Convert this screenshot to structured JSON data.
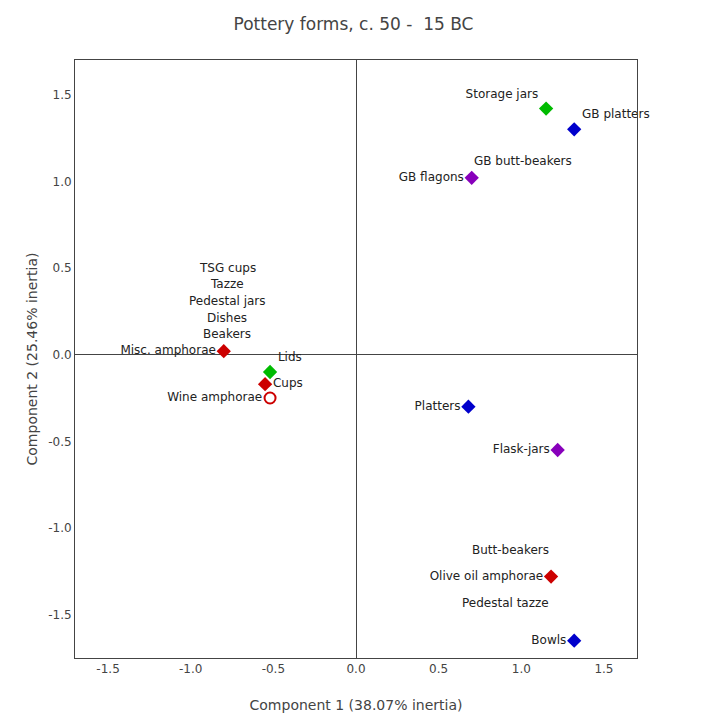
{
  "chart_data": {
    "type": "scatter",
    "title": "Pottery forms, c. 50 -  15 BC",
    "xlabel": "Component 1 (38.07% inertia)",
    "ylabel": "Component 2 (25.46% inertia)",
    "xlim": [
      -1.7,
      1.7
    ],
    "ylim": [
      -1.75,
      1.7
    ],
    "xticks": [
      -1.5,
      {
        "value": -1,
        "label": "-1.0"
      },
      -0.5,
      {
        "value": 0,
        "label": "0.0"
      },
      0.5,
      {
        "value": 1,
        "label": "1.0"
      },
      1.5
    ],
    "yticks": [
      -1.5,
      {
        "value": -1,
        "label": "-1.0"
      },
      -0.5,
      {
        "value": 0,
        "label": "0.0"
      },
      0.5,
      {
        "value": 1,
        "label": "1.0"
      },
      1.5
    ],
    "grid": false,
    "series": [
      {
        "name": "Storage jars",
        "color": "#00bb00",
        "marker": "diamond",
        "x": [
          1.15
        ],
        "values": [
          1.42
        ]
      },
      {
        "name": "GB platters",
        "color": "#0000cc",
        "marker": "diamond",
        "x": [
          1.32
        ],
        "values": [
          1.3
        ]
      },
      {
        "name": "GB flagons",
        "color": "#8800bb",
        "marker": "diamond",
        "x": [
          0.7
        ],
        "values": [
          1.02
        ]
      },
      {
        "name": "Platters",
        "color": "#0000cc",
        "marker": "diamond",
        "x": [
          0.68
        ],
        "values": [
          -0.3
        ]
      },
      {
        "name": "Flask-jars",
        "color": "#8800bb",
        "marker": "diamond",
        "x": [
          1.22
        ],
        "values": [
          -0.55
        ]
      },
      {
        "name": "Olive oil amphorae",
        "color": "#cc0000",
        "marker": "diamond",
        "x": [
          1.18
        ],
        "values": [
          -1.28
        ]
      },
      {
        "name": "Bowls",
        "color": "#0000cc",
        "marker": "diamond",
        "x": [
          1.32
        ],
        "values": [
          -1.65
        ]
      },
      {
        "name": "Misc. amphorae",
        "color": "#cc0000",
        "marker": "diamond",
        "x": [
          -0.8
        ],
        "values": [
          0.02
        ]
      },
      {
        "name": "Lids",
        "color": "#00bb00",
        "marker": "diamond",
        "x": [
          -0.52
        ],
        "values": [
          -0.1
        ]
      },
      {
        "name": "Cups",
        "color": "#cc0000",
        "marker": "diamond",
        "x": [
          -0.55
        ],
        "values": [
          -0.17
        ]
      },
      {
        "name": "Wine amphorae",
        "color": "#cc0000",
        "marker": "circle-open",
        "x": [
          -0.52
        ],
        "values": [
          -0.25
        ]
      }
    ],
    "annotations": [
      {
        "text": "GB butt-beakers",
        "x": 1.32,
        "y": 1.17
      },
      {
        "text": "Butt-beakers",
        "x": 1.18,
        "y": -1.18
      },
      {
        "text": "Pedestal tazze",
        "x": 1.18,
        "y": -1.38
      },
      {
        "text": "TSG cups",
        "x": -0.78,
        "y": 0.5
      },
      {
        "text": "Tazze",
        "x": -0.78,
        "y": 0.41
      },
      {
        "text": "Pedestal jars",
        "x": -0.78,
        "y": 0.31
      },
      {
        "text": "Dishes",
        "x": -0.78,
        "y": 0.21
      },
      {
        "text": "Beakers",
        "x": -0.78,
        "y": 0.12
      }
    ]
  }
}
